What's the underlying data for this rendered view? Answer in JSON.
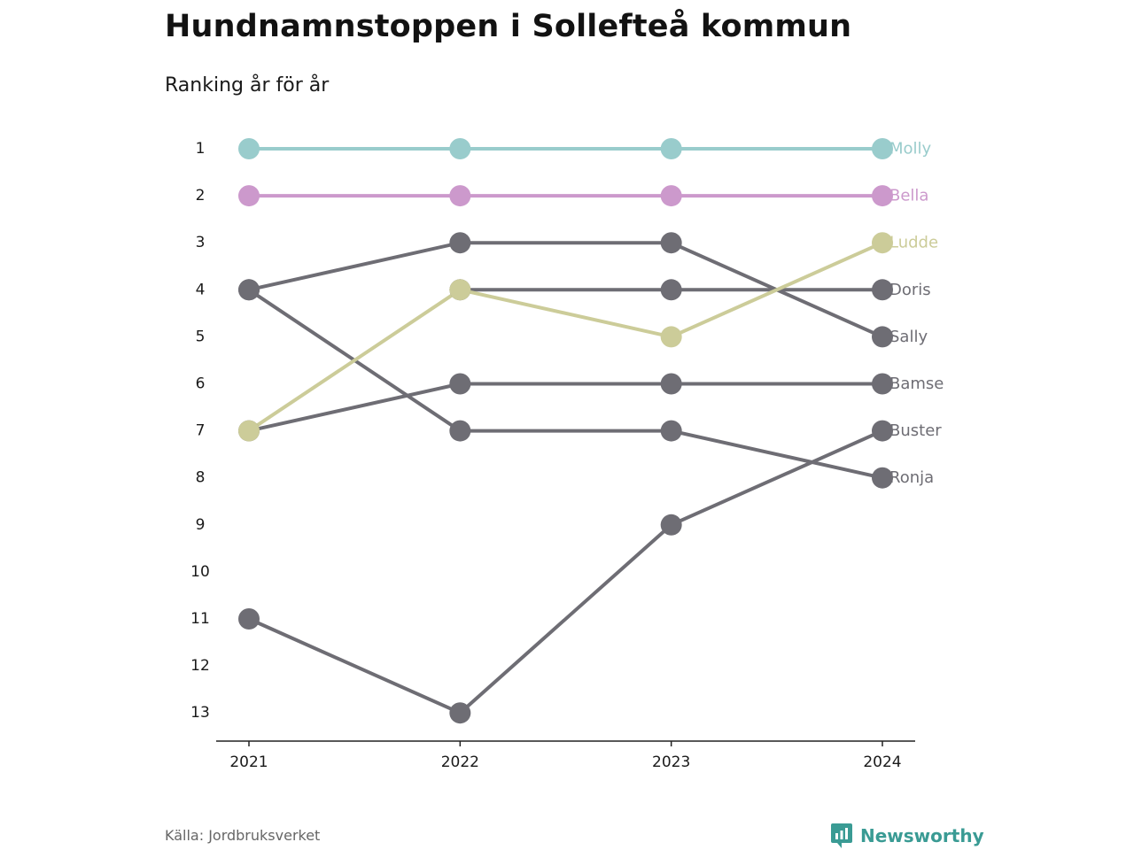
{
  "title": "Hundnamnstoppen i Sollefteå kommun",
  "subtitle": "Ranking år för år",
  "source": "Källa: Jordbruksverket",
  "brand": "Newsworthy",
  "colors": {
    "Molly": "#99cccc",
    "Bella": "#cc99cc",
    "Ludde": "#cccc99",
    "default": "#6e6d74",
    "axis": "#222222",
    "brand": "#3a9b94"
  },
  "chart_data": {
    "type": "line",
    "x": [
      "2021",
      "2022",
      "2023",
      "2024"
    ],
    "ylim": [
      1,
      13
    ],
    "y_reversed": true,
    "y_ticks": [
      "1",
      "2",
      "3",
      "4",
      "5",
      "6",
      "7",
      "8",
      "9",
      "10",
      "11",
      "12",
      "13"
    ],
    "grid": false,
    "series": [
      {
        "name": "Molly",
        "values": [
          1,
          1,
          1,
          1
        ]
      },
      {
        "name": "Bella",
        "values": [
          2,
          2,
          2,
          2
        ]
      },
      {
        "name": "Sally",
        "values": [
          4,
          3,
          3,
          5
        ]
      },
      {
        "name": "Ronja",
        "values": [
          4,
          7,
          7,
          8
        ]
      },
      {
        "name": "Doris",
        "values": [
          null,
          4,
          4,
          4
        ]
      },
      {
        "name": "Bamse",
        "values": [
          7,
          6,
          6,
          6
        ]
      },
      {
        "name": "Buster",
        "values": [
          11,
          13,
          9,
          7
        ]
      },
      {
        "name": "Ludde",
        "values": [
          7,
          4,
          5,
          3
        ]
      }
    ]
  }
}
